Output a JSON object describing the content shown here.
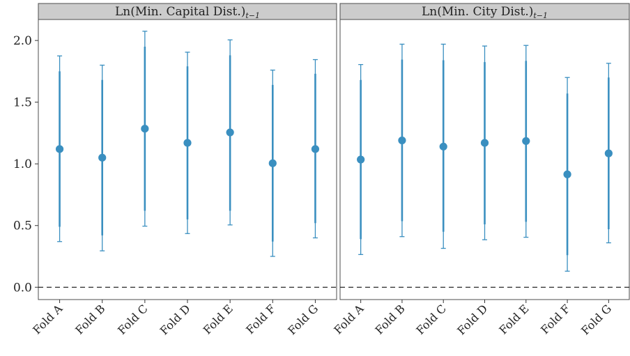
{
  "chart_data": {
    "type": "errorbar",
    "colors": {
      "point": "#3a8fc0",
      "interval": "#3a8fc0",
      "strip": "#cccccc",
      "reference_line": "#111111"
    },
    "ylim": [
      -0.1,
      2.17
    ],
    "y_ticks": [
      0.0,
      0.5,
      1.0,
      1.5,
      2.0
    ],
    "y_tick_labels": [
      "0.0",
      "0.5",
      "1.0",
      "1.5",
      "2.0"
    ],
    "reference_line": {
      "y": 0,
      "style": "dashed"
    },
    "categories": [
      "Fold A",
      "Fold B",
      "Fold C",
      "Fold D",
      "Fold E",
      "Fold F",
      "Fold G"
    ],
    "grid": false,
    "panels": [
      {
        "title_main": "Ln(Min. Capital Dist.)",
        "title_sub": "t−1",
        "estimate": [
          1.12,
          1.05,
          1.285,
          1.17,
          1.255,
          1.005,
          1.12
        ],
        "inner_low": [
          0.49,
          0.42,
          0.62,
          0.55,
          0.62,
          0.37,
          0.52
        ],
        "inner_high": [
          1.75,
          1.68,
          1.95,
          1.79,
          1.88,
          1.64,
          1.73
        ],
        "outer_low": [
          0.37,
          0.295,
          0.495,
          0.435,
          0.505,
          0.25,
          0.4
        ],
        "outer_high": [
          1.875,
          1.8,
          2.075,
          1.905,
          2.005,
          1.76,
          1.845
        ]
      },
      {
        "title_main": "Ln(Min. City Dist.)",
        "title_sub": "t−1",
        "estimate": [
          1.035,
          1.19,
          1.14,
          1.17,
          1.185,
          0.915,
          1.085
        ],
        "inner_low": [
          0.39,
          0.535,
          0.45,
          0.51,
          0.53,
          0.26,
          0.47
        ],
        "inner_high": [
          1.68,
          1.845,
          1.84,
          1.825,
          1.835,
          1.57,
          1.7
        ],
        "outer_low": [
          0.265,
          0.41,
          0.315,
          0.385,
          0.405,
          0.13,
          0.36
        ],
        "outer_high": [
          1.805,
          1.97,
          1.97,
          1.955,
          1.96,
          1.7,
          1.815
        ]
      }
    ]
  }
}
